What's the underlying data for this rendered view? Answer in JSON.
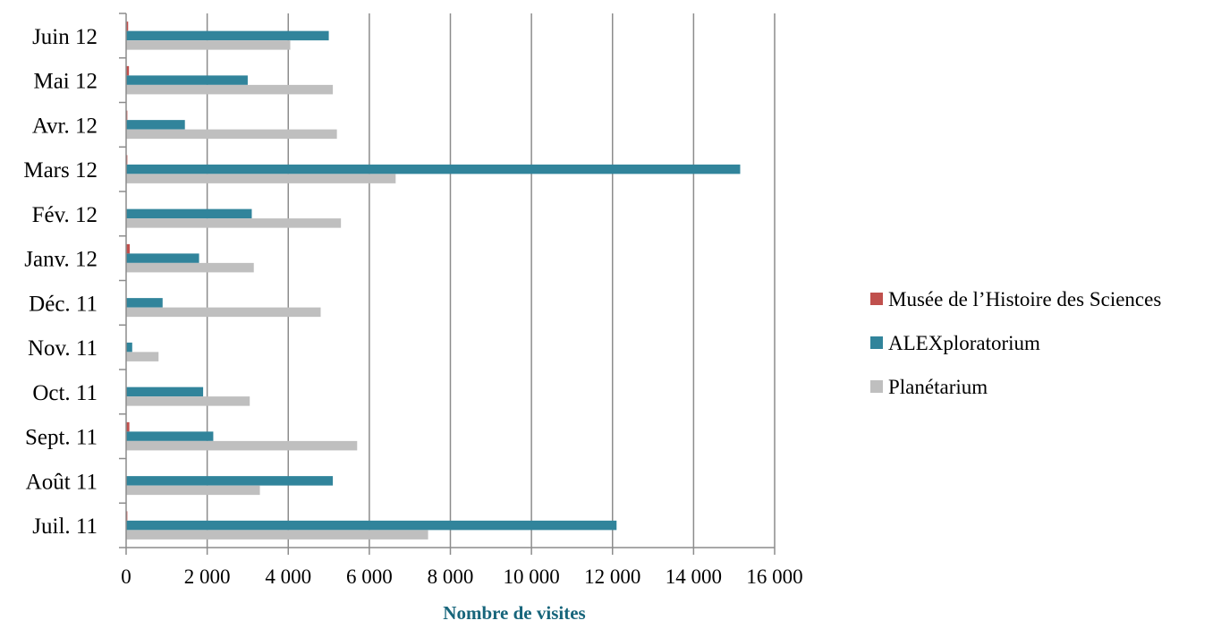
{
  "chart_data": {
    "type": "bar",
    "orientation": "horizontal",
    "title": "",
    "xlabel": "Nombre de visites",
    "ylabel": "",
    "xlim": [
      0,
      16000
    ],
    "x_ticks": [
      0,
      2000,
      4000,
      6000,
      8000,
      10000,
      12000,
      14000,
      16000
    ],
    "x_tick_labels": [
      "0",
      "2 000",
      "4 000",
      "6 000",
      "8 000",
      "10 000",
      "12 000",
      "14 000",
      "16 000"
    ],
    "grid": "vertical",
    "legend_position": "right",
    "categories": [
      "Juil. 11",
      "Août 11",
      "Sept. 11",
      "Oct. 11",
      "Nov. 11",
      "Déc. 11",
      "Janv. 12",
      "Fév. 12",
      "Mars 12",
      "Avr. 12",
      "Mai 12",
      "Juin 12"
    ],
    "series": [
      {
        "name": "Musée de l’Histoire des Sciences",
        "color": "#c0504d",
        "values": [
          30,
          0,
          80,
          0,
          0,
          0,
          90,
          0,
          30,
          30,
          70,
          50
        ]
      },
      {
        "name": "ALEXploratorium",
        "color": "#31849b",
        "values": [
          12100,
          5100,
          2150,
          1900,
          150,
          900,
          1800,
          3100,
          15150,
          1450,
          3000,
          5000
        ]
      },
      {
        "name": "Planétarium",
        "color": "#bfbfbf",
        "values": [
          7450,
          3300,
          5700,
          3050,
          800,
          4800,
          3150,
          5300,
          6650,
          5200,
          5100,
          4050
        ]
      }
    ]
  }
}
